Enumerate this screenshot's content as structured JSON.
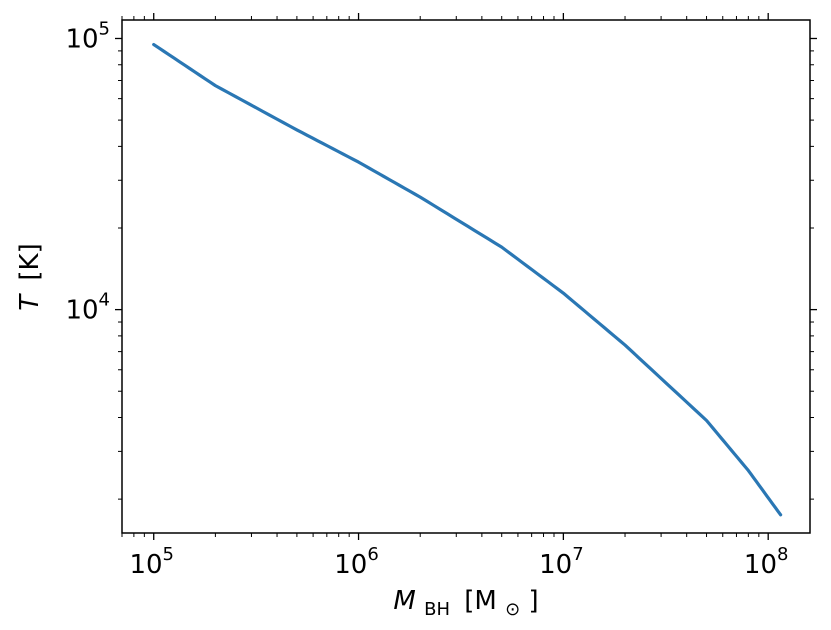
{
  "chart_data": {
    "type": "line",
    "xscale": "log",
    "yscale": "log",
    "xlim": [
      70000,
      160000000
    ],
    "ylim": [
      1500,
      117000
    ],
    "grid": false,
    "legend": "none",
    "xlabel": {
      "symbol": "M",
      "subscript": "BH",
      "unit": "[M",
      "unit_sub": "⊙",
      "unit_close": "]"
    },
    "ylabel": {
      "symbol": "T",
      "unit": "[K]"
    },
    "xticks": [
      {
        "value": 100000,
        "base": "10",
        "exp": "5"
      },
      {
        "value": 1000000,
        "base": "10",
        "exp": "6"
      },
      {
        "value": 10000000,
        "base": "10",
        "exp": "7"
      },
      {
        "value": 100000000,
        "base": "10",
        "exp": "8"
      }
    ],
    "yticks": [
      {
        "value": 10000,
        "base": "10",
        "exp": "4"
      },
      {
        "value": 100000,
        "base": "10",
        "exp": "5"
      }
    ],
    "series": [
      {
        "color": "#2a77b4",
        "x": [
          100000,
          200000,
          500000,
          1000000,
          2000000,
          5000000,
          10000000,
          20000000,
          50000000,
          80000000,
          115000000
        ],
        "y": [
          95000,
          67000,
          46000,
          35000,
          26000,
          17000,
          11500,
          7400,
          3900,
          2550,
          1750
        ]
      }
    ]
  }
}
